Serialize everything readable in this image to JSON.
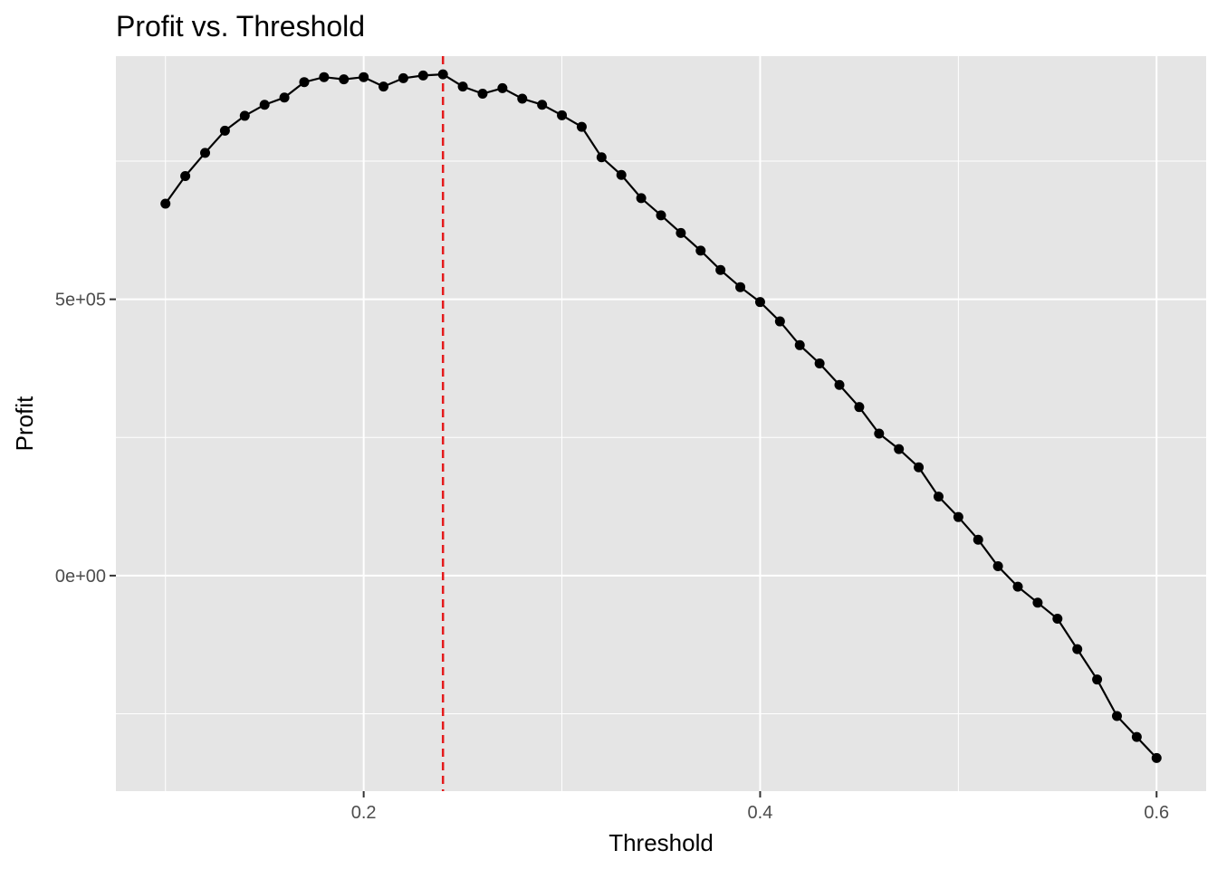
{
  "chart_data": {
    "type": "line",
    "title": "Profit vs. Threshold",
    "xlabel": "Threshold",
    "ylabel": "Profit",
    "xlim": [
      0.075,
      0.625
    ],
    "ylim": [
      -390000,
      940000
    ],
    "x_ticks": [
      {
        "value": 0.2,
        "label": "0.2"
      },
      {
        "value": 0.4,
        "label": "0.4"
      },
      {
        "value": 0.6,
        "label": "0.6"
      }
    ],
    "x_minor": [
      0.1,
      0.3,
      0.5
    ],
    "y_ticks": [
      {
        "value": 0,
        "label": "0e+00"
      },
      {
        "value": 500000,
        "label": "5e+05"
      }
    ],
    "y_minor": [
      -250000,
      250000,
      750000
    ],
    "grid": true,
    "colors": {
      "panel": "#e5e5e5",
      "grid": "#ffffff",
      "line": "#000000",
      "points": "#000000",
      "vline": "#e41a1c"
    },
    "vline": {
      "x": 0.24,
      "style": "dashed"
    },
    "series": [
      {
        "x": [
          0.1,
          0.11,
          0.12,
          0.13,
          0.14,
          0.15,
          0.16,
          0.17,
          0.18,
          0.19,
          0.2,
          0.21,
          0.22,
          0.23,
          0.24,
          0.25,
          0.26,
          0.27,
          0.28,
          0.29,
          0.3,
          0.31,
          0.32,
          0.33,
          0.34,
          0.35,
          0.36,
          0.37,
          0.38,
          0.39,
          0.4,
          0.41,
          0.42,
          0.43,
          0.44,
          0.45,
          0.46,
          0.47,
          0.48,
          0.49,
          0.5,
          0.51,
          0.52,
          0.53,
          0.54,
          0.55,
          0.56,
          0.57,
          0.58,
          0.59,
          0.6
        ],
        "y": [
          673000,
          723000,
          765000,
          805000,
          832000,
          852000,
          865000,
          893000,
          902000,
          898000,
          902000,
          885000,
          900000,
          905000,
          907000,
          885000,
          872000,
          882000,
          863000,
          852000,
          833000,
          812000,
          757000,
          725000,
          683000,
          652000,
          620000,
          588000,
          553000,
          522000,
          495000,
          460000,
          417000,
          384000,
          345000,
          305000,
          257000,
          229000,
          196000,
          143000,
          106000,
          65000,
          17000,
          -20000,
          -49000,
          -78000,
          -133000,
          -188000,
          -254000,
          -292000,
          -330000
        ]
      }
    ]
  }
}
